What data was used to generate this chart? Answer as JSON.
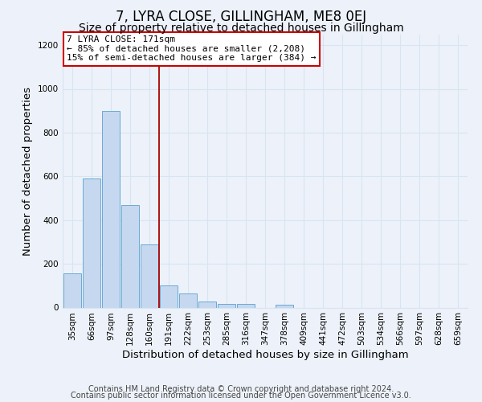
{
  "title": "7, LYRA CLOSE, GILLINGHAM, ME8 0EJ",
  "subtitle": "Size of property relative to detached houses in Gillingham",
  "xlabel": "Distribution of detached houses by size in Gillingham",
  "ylabel": "Number of detached properties",
  "categories": [
    "35sqm",
    "66sqm",
    "97sqm",
    "128sqm",
    "160sqm",
    "191sqm",
    "222sqm",
    "253sqm",
    "285sqm",
    "316sqm",
    "347sqm",
    "378sqm",
    "409sqm",
    "441sqm",
    "472sqm",
    "503sqm",
    "534sqm",
    "566sqm",
    "597sqm",
    "628sqm",
    "659sqm"
  ],
  "bar_values": [
    155,
    590,
    900,
    470,
    290,
    100,
    65,
    28,
    18,
    15,
    0,
    12,
    0,
    0,
    0,
    0,
    0,
    0,
    0,
    0,
    0
  ],
  "bar_color": "#c5d8ef",
  "bar_edge_color": "#6aaad4",
  "vline_color": "#aa0000",
  "vline_pos": 4.5,
  "ylim": [
    0,
    1250
  ],
  "yticks": [
    0,
    200,
    400,
    600,
    800,
    1000,
    1200
  ],
  "annotation_title": "7 LYRA CLOSE: 171sqm",
  "annotation_line1": "← 85% of detached houses are smaller (2,208)",
  "annotation_line2": "15% of semi-detached houses are larger (384) →",
  "annotation_box_color": "#ffffff",
  "annotation_box_edge": "#cc0000",
  "footer_line1": "Contains HM Land Registry data © Crown copyright and database right 2024.",
  "footer_line2": "Contains public sector information licensed under the Open Government Licence v3.0.",
  "background_color": "#edf2fa",
  "grid_color": "#d8e4f0",
  "title_fontsize": 12,
  "subtitle_fontsize": 10,
  "axis_label_fontsize": 9.5,
  "tick_fontsize": 7.5,
  "annotation_fontsize": 8,
  "footer_fontsize": 7
}
